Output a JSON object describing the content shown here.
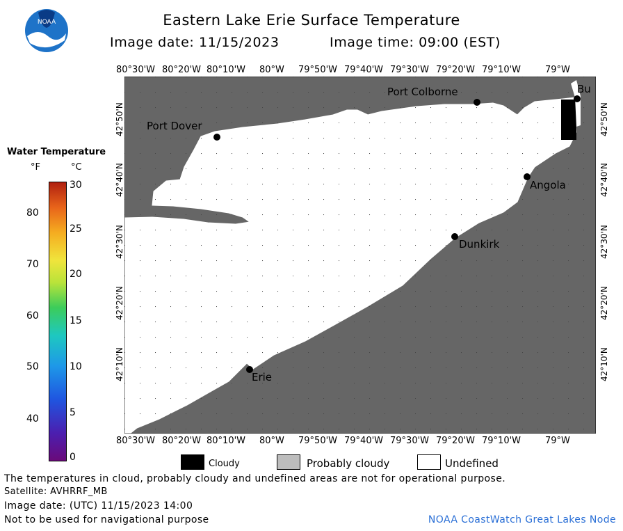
{
  "header": {
    "title": "Eastern Lake Erie Surface Temperature",
    "image_date_label": "Image date: 11/15/2023",
    "image_time_label": "Image time: 09:00 (EST)"
  },
  "logo": {
    "text": "NOAA"
  },
  "colorbar": {
    "title": "Water Temperature",
    "unit_f": "°F",
    "unit_c": "°C",
    "f_ticks": [
      "80",
      "70",
      "60",
      "50",
      "40"
    ],
    "c_ticks": [
      "30",
      "25",
      "20",
      "15",
      "10",
      "5",
      "0"
    ],
    "range_c": [
      0,
      30
    ]
  },
  "map": {
    "lon_labels": [
      "80°30'W",
      "80°20'W",
      "80°10'W",
      "80°W",
      "79°50'W",
      "79°40'W",
      "79°30'W",
      "79°20'W",
      "79°10'W",
      "79°W"
    ],
    "lat_labels": [
      "42°50'N",
      "42°40'N",
      "42°30'N",
      "42°20'N",
      "42°10'N"
    ],
    "places": [
      "Port Colborne",
      "Bu",
      "Port Dover",
      "Angola",
      "Dunkirk",
      "Erie"
    ],
    "colors": {
      "land": "#666666",
      "water_undefined": "#ffffff",
      "cloud": "#000000"
    }
  },
  "legend": {
    "cloudy": "Cloudy",
    "probably_cloudy": "Probably cloudy",
    "undefined": "Undefined"
  },
  "footer": {
    "note": "The temperatures in cloud, probably cloudy and undefined areas are not for operational purpose.",
    "satellite": "Satellite: AVHRRF_MB",
    "utc_date": "Image date: (UTC) 11/15/2023  14:00",
    "nav_warning": "Not to be used for navigational purpose",
    "credit": "NOAA CoastWatch Great Lakes Node"
  }
}
